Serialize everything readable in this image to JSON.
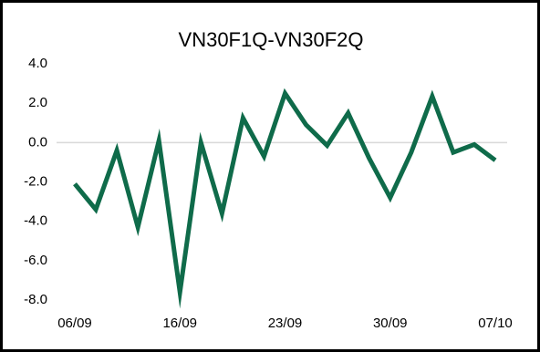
{
  "chart_data": {
    "type": "line",
    "title": "VN30F1Q-VN30F2Q",
    "categories": [
      "06/09",
      null,
      null,
      null,
      null,
      "16/09",
      null,
      null,
      null,
      null,
      "23/09",
      null,
      null,
      null,
      null,
      "30/09",
      null,
      null,
      null,
      null,
      "07/10"
    ],
    "series": [
      {
        "name": "VN30F1Q-VN30F2Q",
        "color": "#0f6b4a",
        "values": [
          -2.1,
          -3.4,
          -0.4,
          -4.3,
          0.1,
          -7.6,
          0.0,
          -3.6,
          1.25,
          -0.7,
          2.5,
          0.9,
          -0.15,
          1.5,
          -0.8,
          -2.8,
          -0.5,
          2.35,
          -0.5,
          -0.1,
          -0.9
        ]
      }
    ],
    "ylim": [
      -8,
      4
    ],
    "yticks": [
      {
        "value": 4,
        "label": "4.0"
      },
      {
        "value": 2,
        "label": "2.0"
      },
      {
        "value": 0,
        "label": "0.0"
      },
      {
        "value": -2,
        "label": "-2.0"
      },
      {
        "value": -4,
        "label": "-4.0"
      },
      {
        "value": -6,
        "label": "-6.0"
      },
      {
        "value": -8,
        "label": "-8.0"
      }
    ],
    "grid": false
  }
}
